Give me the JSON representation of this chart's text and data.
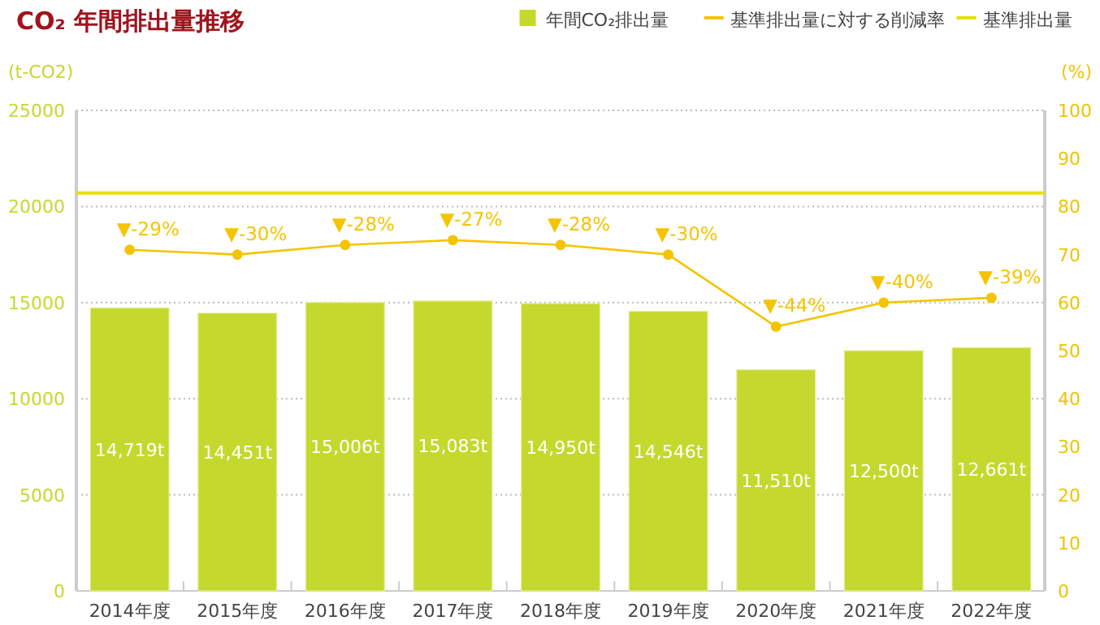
{
  "chart_data": {
    "type": "bar",
    "title": "CO₂ 年間排出量推移",
    "ylabel": "(t-CO2)",
    "y2label": "(%)",
    "categories": [
      "2014年度",
      "2015年度",
      "2016年度",
      "2017年度",
      "2018年度",
      "2019年度",
      "2020年度",
      "2021年度",
      "2022年度"
    ],
    "series": [
      {
        "name": "年間CO₂排出量",
        "color": "#c5d82e",
        "values": [
          14719,
          14451,
          15006,
          15083,
          14950,
          14546,
          11510,
          12500,
          12661
        ],
        "value_labels": [
          "14,719t",
          "14,451t",
          "15,006t",
          "15,083t",
          "14,950t",
          "14,546t",
          "11,510t",
          "12,500t",
          "12,661t"
        ]
      },
      {
        "name": "基準排出量に対する削減率",
        "type": "line",
        "axis": "y2",
        "color": "#f5c400",
        "marker": "circle",
        "values": [
          71,
          70,
          72,
          73,
          72,
          70,
          55,
          60,
          61
        ]
      }
    ],
    "annotations": [
      "▼-29%",
      "▼-30%",
      "▼-28%",
      "▼-27%",
      "▼-28%",
      "▼-30%",
      "▼-44%",
      "▼-40%",
      "▼-39%"
    ],
    "ref_lines": [
      {
        "axis": "y",
        "value": 20700,
        "label": "基準排出量",
        "color": "#e6e000"
      }
    ],
    "ylim": [
      0,
      25000
    ],
    "yticks": [
      0,
      5000,
      10000,
      15000,
      20000,
      25000
    ],
    "y2lim": [
      0,
      100
    ],
    "y2ticks": [
      0,
      10,
      20,
      30,
      40,
      50,
      60,
      70,
      80,
      90,
      100
    ],
    "grid": "y",
    "legend": "top right"
  }
}
